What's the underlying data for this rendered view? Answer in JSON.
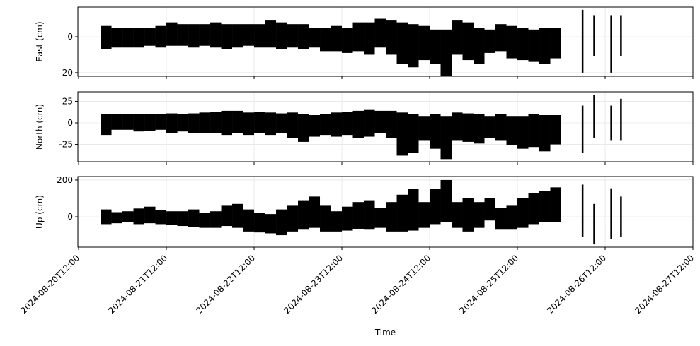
{
  "chart_data": [
    {
      "type": "range",
      "ylabel": "East (cm)",
      "ylim": [
        -22,
        16.5
      ],
      "yticks": [
        -20,
        0
      ],
      "grid": true,
      "xlim": [
        "2024-08-20T11:48",
        "2024-08-27T12:00"
      ],
      "xticks": [
        "2024-08-20T12:00",
        "2024-08-21T12:00",
        "2024-08-22T12:00",
        "2024-08-23T12:00",
        "2024-08-24T12:00",
        "2024-08-25T12:00",
        "2024-08-26T12:00",
        "2024-08-27T12:00"
      ],
      "series": [
        {
          "color": "#000000",
          "x": [
            "2024-08-20T18:00",
            "2024-08-20T21:00",
            "2024-08-21T00:00",
            "2024-08-21T03:00",
            "2024-08-21T06:00",
            "2024-08-21T09:00",
            "2024-08-21T12:00",
            "2024-08-21T15:00",
            "2024-08-21T18:00",
            "2024-08-21T21:00",
            "2024-08-22T00:00",
            "2024-08-22T03:00",
            "2024-08-22T06:00",
            "2024-08-22T09:00",
            "2024-08-22T12:00",
            "2024-08-22T15:00",
            "2024-08-22T18:00",
            "2024-08-22T21:00",
            "2024-08-23T00:00",
            "2024-08-23T03:00",
            "2024-08-23T06:00",
            "2024-08-23T09:00",
            "2024-08-23T12:00",
            "2024-08-23T15:00",
            "2024-08-23T18:00",
            "2024-08-23T21:00",
            "2024-08-24T00:00",
            "2024-08-24T03:00",
            "2024-08-24T06:00",
            "2024-08-24T09:00",
            "2024-08-24T12:00",
            "2024-08-24T15:00",
            "2024-08-24T18:00",
            "2024-08-24T21:00",
            "2024-08-25T00:00",
            "2024-08-25T03:00",
            "2024-08-25T06:00",
            "2024-08-25T09:00",
            "2024-08-25T12:00",
            "2024-08-25T15:00",
            "2024-08-25T18:00",
            "2024-08-25T21:00"
          ],
          "low": [
            -7,
            -6,
            -6,
            -6,
            -5,
            -6,
            -5,
            -5,
            -6,
            -5,
            -6,
            -7,
            -6,
            -5,
            -6,
            -6,
            -7,
            -6,
            -7,
            -6,
            -8,
            -8,
            -9,
            -8,
            -10,
            -6,
            -10,
            -15,
            -17,
            -13,
            -15,
            -22,
            -10,
            -13,
            -15,
            -9,
            -8,
            -12,
            -13,
            -14,
            -15,
            -12
          ],
          "high": [
            6,
            5,
            5,
            5,
            5,
            6,
            8,
            7,
            7,
            7,
            8,
            7,
            7,
            7,
            7,
            9,
            8,
            7,
            7,
            5,
            5,
            6,
            5,
            8,
            8,
            10,
            9,
            8,
            7,
            6,
            4,
            4,
            9,
            8,
            5,
            4,
            7,
            6,
            5,
            4,
            5,
            5
          ]
        },
        {
          "color": "#000000",
          "x": [
            "2024-08-26T05:50",
            "2024-08-26T09:00",
            "2024-08-26T13:40",
            "2024-08-26T16:20"
          ],
          "low": [
            -20,
            -11,
            -20,
            -11
          ],
          "high": [
            15,
            12,
            12,
            12
          ]
        }
      ]
    },
    {
      "type": "range",
      "ylabel": "North (cm)",
      "ylim": [
        -45,
        36
      ],
      "yticks": [
        -25,
        0,
        25
      ],
      "grid": true,
      "xlim": [
        "2024-08-20T11:48",
        "2024-08-27T12:00"
      ],
      "xticks": [
        "2024-08-20T12:00",
        "2024-08-21T12:00",
        "2024-08-22T12:00",
        "2024-08-23T12:00",
        "2024-08-24T12:00",
        "2024-08-25T12:00",
        "2024-08-26T12:00",
        "2024-08-27T12:00"
      ],
      "series": [
        {
          "color": "#000000",
          "x": [
            "2024-08-20T18:00",
            "2024-08-20T21:00",
            "2024-08-21T00:00",
            "2024-08-21T03:00",
            "2024-08-21T06:00",
            "2024-08-21T09:00",
            "2024-08-21T12:00",
            "2024-08-21T15:00",
            "2024-08-21T18:00",
            "2024-08-21T21:00",
            "2024-08-22T00:00",
            "2024-08-22T03:00",
            "2024-08-22T06:00",
            "2024-08-22T09:00",
            "2024-08-22T12:00",
            "2024-08-22T15:00",
            "2024-08-22T18:00",
            "2024-08-22T21:00",
            "2024-08-23T00:00",
            "2024-08-23T03:00",
            "2024-08-23T06:00",
            "2024-08-23T09:00",
            "2024-08-23T12:00",
            "2024-08-23T15:00",
            "2024-08-23T18:00",
            "2024-08-23T21:00",
            "2024-08-24T00:00",
            "2024-08-24T03:00",
            "2024-08-24T06:00",
            "2024-08-24T09:00",
            "2024-08-24T12:00",
            "2024-08-24T15:00",
            "2024-08-24T18:00",
            "2024-08-24T21:00",
            "2024-08-25T00:00",
            "2024-08-25T03:00",
            "2024-08-25T06:00",
            "2024-08-25T09:00",
            "2024-08-25T12:00",
            "2024-08-25T15:00",
            "2024-08-25T18:00",
            "2024-08-25T21:00"
          ],
          "low": [
            -14,
            -8,
            -8,
            -10,
            -9,
            -8,
            -12,
            -10,
            -12,
            -12,
            -12,
            -14,
            -12,
            -14,
            -12,
            -14,
            -12,
            -18,
            -22,
            -16,
            -14,
            -16,
            -14,
            -18,
            -16,
            -12,
            -18,
            -38,
            -35,
            -20,
            -30,
            -42,
            -20,
            -22,
            -24,
            -18,
            -20,
            -26,
            -30,
            -28,
            -33,
            -25
          ],
          "high": [
            10,
            10,
            10,
            10,
            10,
            10,
            11,
            10,
            11,
            12,
            13,
            14,
            14,
            12,
            13,
            12,
            11,
            12,
            10,
            9,
            10,
            12,
            13,
            14,
            15,
            14,
            14,
            12,
            10,
            8,
            10,
            8,
            12,
            11,
            10,
            8,
            10,
            8,
            8,
            10,
            9,
            9
          ]
        },
        {
          "color": "#000000",
          "x": [
            "2024-08-26T05:50",
            "2024-08-26T09:00",
            "2024-08-26T13:40",
            "2024-08-26T16:20"
          ],
          "low": [
            -35,
            -18,
            -20,
            -20
          ],
          "high": [
            20,
            32,
            20,
            28
          ]
        }
      ]
    },
    {
      "type": "range",
      "ylabel": "Up (cm)",
      "xlabel": "Time",
      "ylim": [
        -165,
        219
      ],
      "yticks": [
        0,
        200
      ],
      "grid": true,
      "xlim": [
        "2024-08-20T11:48",
        "2024-08-27T12:00"
      ],
      "xticks": [
        "2024-08-20T12:00",
        "2024-08-21T12:00",
        "2024-08-22T12:00",
        "2024-08-23T12:00",
        "2024-08-24T12:00",
        "2024-08-25T12:00",
        "2024-08-26T12:00",
        "2024-08-27T12:00"
      ],
      "series": [
        {
          "color": "#000000",
          "x": [
            "2024-08-20T18:00",
            "2024-08-20T21:00",
            "2024-08-21T00:00",
            "2024-08-21T03:00",
            "2024-08-21T06:00",
            "2024-08-21T09:00",
            "2024-08-21T12:00",
            "2024-08-21T15:00",
            "2024-08-21T18:00",
            "2024-08-21T21:00",
            "2024-08-22T00:00",
            "2024-08-22T03:00",
            "2024-08-22T06:00",
            "2024-08-22T09:00",
            "2024-08-22T12:00",
            "2024-08-22T15:00",
            "2024-08-22T18:00",
            "2024-08-22T21:00",
            "2024-08-23T00:00",
            "2024-08-23T03:00",
            "2024-08-23T06:00",
            "2024-08-23T09:00",
            "2024-08-23T12:00",
            "2024-08-23T15:00",
            "2024-08-23T18:00",
            "2024-08-23T21:00",
            "2024-08-24T00:00",
            "2024-08-24T03:00",
            "2024-08-24T06:00",
            "2024-08-24T09:00",
            "2024-08-24T12:00",
            "2024-08-24T15:00",
            "2024-08-24T18:00",
            "2024-08-24T21:00",
            "2024-08-25T00:00",
            "2024-08-25T03:00",
            "2024-08-25T06:00",
            "2024-08-25T09:00",
            "2024-08-25T12:00",
            "2024-08-25T15:00",
            "2024-08-25T18:00",
            "2024-08-25T21:00"
          ],
          "low": [
            -40,
            -35,
            -30,
            -40,
            -35,
            -40,
            -45,
            -50,
            -55,
            -60,
            -60,
            -50,
            -60,
            -80,
            -85,
            -90,
            -100,
            -80,
            -70,
            -60,
            -80,
            -80,
            -75,
            -65,
            -70,
            -60,
            -80,
            -80,
            -75,
            -60,
            -40,
            -30,
            -60,
            -80,
            -60,
            -20,
            -70,
            -70,
            -60,
            -40,
            -30,
            -30
          ],
          "high": [
            40,
            25,
            30,
            45,
            55,
            35,
            30,
            30,
            40,
            20,
            30,
            60,
            70,
            40,
            20,
            15,
            40,
            60,
            90,
            110,
            60,
            30,
            55,
            80,
            90,
            50,
            80,
            120,
            150,
            80,
            150,
            200,
            80,
            100,
            80,
            100,
            50,
            60,
            100,
            130,
            140,
            160
          ]
        },
        {
          "color": "#000000",
          "x": [
            "2024-08-26T05:50",
            "2024-08-26T09:00",
            "2024-08-26T13:40",
            "2024-08-26T16:20"
          ],
          "low": [
            -110,
            -150,
            -120,
            -110
          ],
          "high": [
            175,
            70,
            155,
            110
          ]
        }
      ]
    }
  ]
}
